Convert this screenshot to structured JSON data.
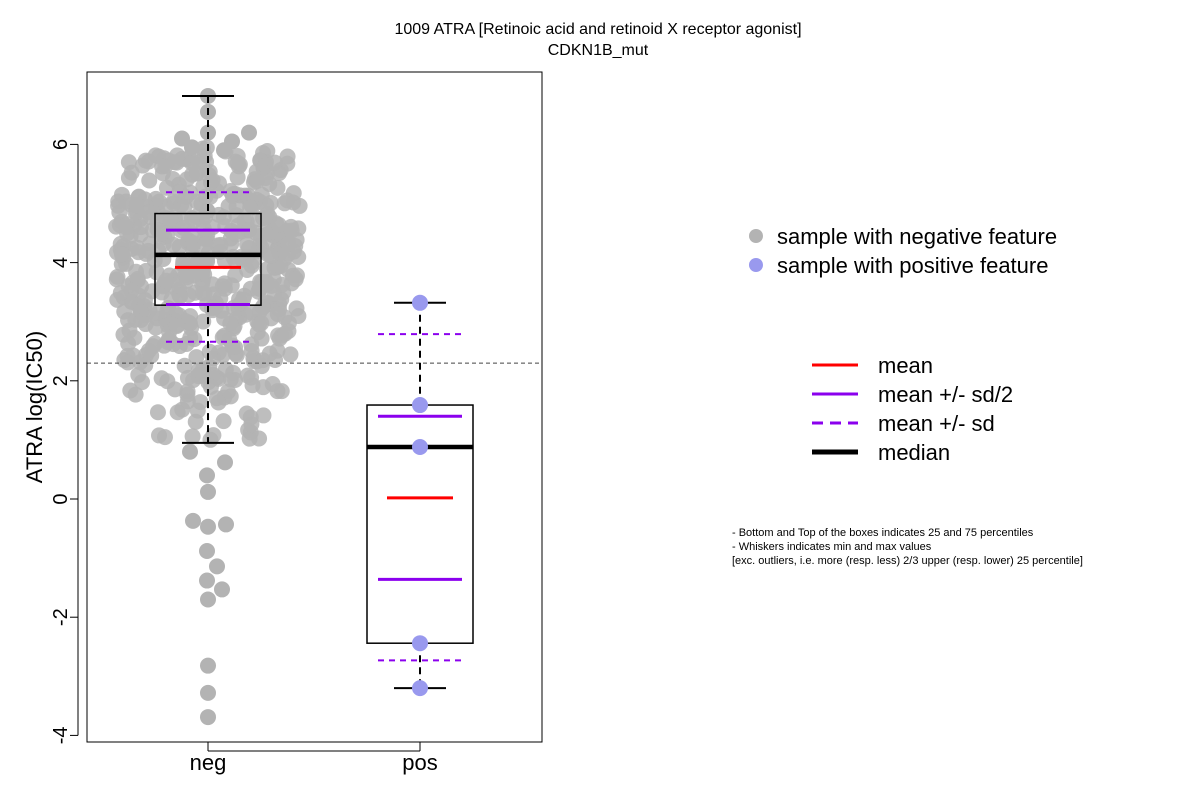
{
  "chart_data": {
    "type": "box",
    "title": "1009 ATRA [Retinoic acid and retinoid X receptor agonist]",
    "subtitle": "CDKN1B_mut",
    "ylabel": "ATRA log(IC50)",
    "xlabel": "",
    "categories": [
      "neg",
      "pos"
    ],
    "y_ticks": [
      "-4",
      "-2",
      "0",
      "2",
      "4",
      "6"
    ],
    "ylim": [
      -4.1,
      7.2
    ],
    "threshold_line": 2.3,
    "groups": [
      {
        "category": "neg",
        "point_color": "#b3b3b3",
        "min": 0.95,
        "q1": 3.28,
        "median": 4.13,
        "q3": 4.83,
        "max": 6.82,
        "mean": 3.92,
        "mean_minus_half_sd": 3.29,
        "mean_plus_half_sd": 4.55,
        "mean_minus_sd": 2.66,
        "mean_plus_sd": 5.19,
        "outliers": [
          0.8,
          0.62,
          0.4,
          0.12,
          -0.37,
          -0.47,
          -0.43,
          -0.88,
          -1.14,
          -1.38,
          -1.53,
          -1.7,
          -2.82,
          -3.28,
          -3.69
        ]
      },
      {
        "category": "pos",
        "point_color": "#9999ee",
        "min": -3.2,
        "q1": -2.44,
        "median": 0.88,
        "q3": 1.59,
        "max": 3.32,
        "mean": 0.02,
        "mean_minus_half_sd": -1.36,
        "mean_plus_half_sd": 1.4,
        "mean_minus_sd": -2.73,
        "mean_plus_sd": 2.79,
        "points": [
          3.32,
          1.59,
          0.88,
          -2.44,
          -3.2
        ]
      }
    ],
    "legend_points": [
      {
        "label": "sample with negative feature",
        "color": "#b3b3b3"
      },
      {
        "label": "sample with positive feature",
        "color": "#9999ee"
      }
    ],
    "legend_lines": [
      {
        "label": "mean",
        "color": "#ff0000",
        "style": "solid"
      },
      {
        "label": "mean +/- sd/2",
        "color": "#8b00ee",
        "style": "solid"
      },
      {
        "label": "mean +/- sd",
        "color": "#8b00ee",
        "style": "dashed"
      },
      {
        "label": "median",
        "color": "#000000",
        "style": "solid-thick"
      }
    ],
    "notes": [
      "- Bottom and Top of the boxes indicates 25 and 75 percentiles",
      "- Whiskers indicates min and max values",
      "[exc. outliers, i.e. more (resp. less) 2/3 upper (resp. lower) 25 percentile]"
    ]
  }
}
